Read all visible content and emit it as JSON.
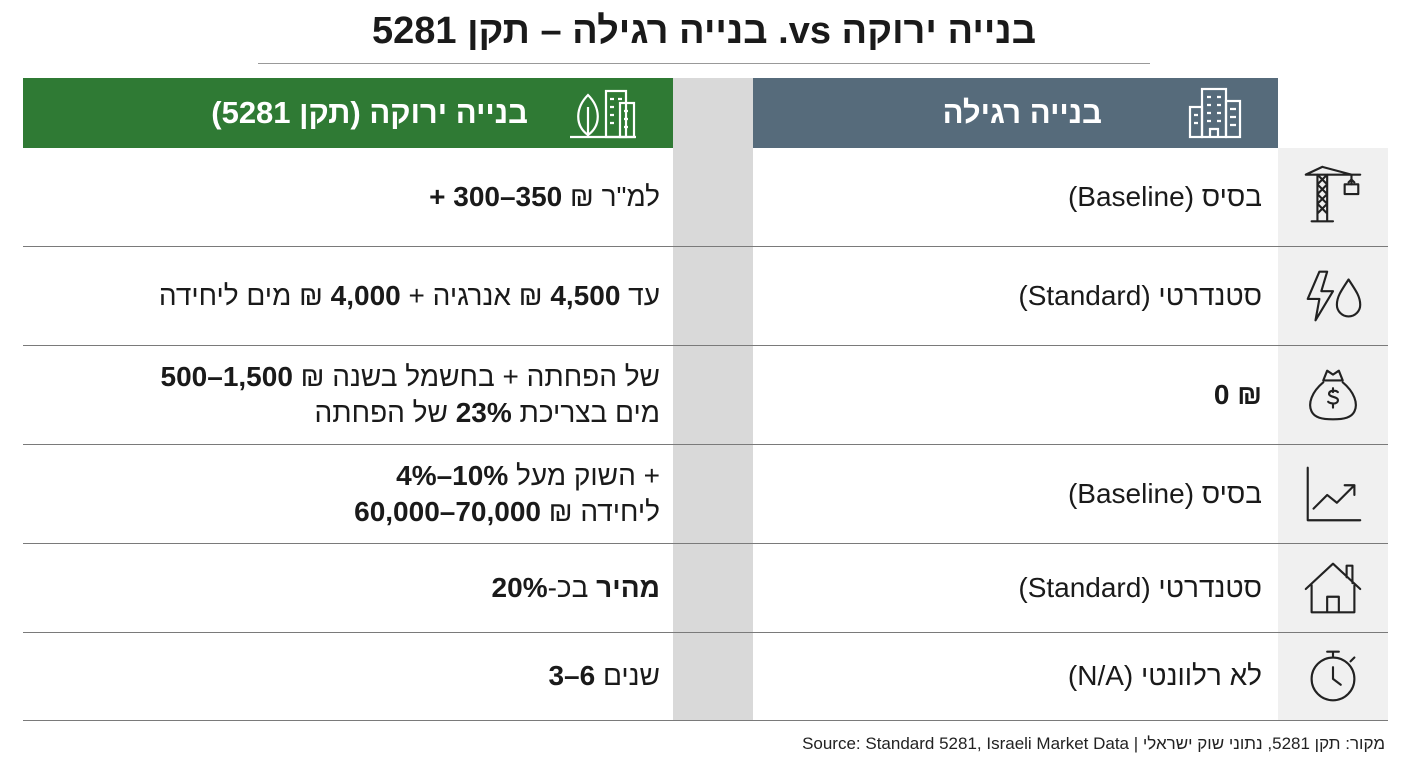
{
  "title": "בנייה ירוקה vs. בנייה רגילה – תקן 5281",
  "table": {
    "headers": {
      "green": "בנייה ירוקה (תקן 5281)",
      "regular": "בנייה רגילה"
    },
    "rows": [
      {
        "regular": [
          [
            {
              "text": "בסיס (Baseline)"
            }
          ]
        ],
        "green": [
          [
            {
              "text": "למ\"ר ₪ "
            },
            {
              "text": "+ 300–350",
              "bold": true
            }
          ]
        ]
      },
      {
        "regular": [
          [
            {
              "text": "סטנדרטי (Standard)"
            }
          ]
        ],
        "green": [
          [
            {
              "text": "עד "
            },
            {
              "text": "4,500",
              "bold": true
            },
            {
              "text": " ₪ אנרגיה + "
            },
            {
              "text": "4,000",
              "bold": true
            },
            {
              "text": " ₪ מים ליחידה"
            }
          ]
        ]
      },
      {
        "regular": [
          [
            {
              "text": "0 ₪",
              "bold": true
            }
          ]
        ],
        "green": [
          [
            {
              "text": "של הפחתה + בחשמל בשנה ₪ "
            },
            {
              "text": "500–1,500",
              "bold": true
            }
          ],
          [
            {
              "text": "מים בצריכת "
            },
            {
              "text": "23%",
              "bold": true
            },
            {
              "text": " של הפחתה"
            }
          ]
        ]
      },
      {
        "regular": [
          [
            {
              "text": "בסיס (Baseline)"
            }
          ]
        ],
        "green": [
          [
            {
              "text": "+ השוק מעל "
            },
            {
              "text": "4%–10%",
              "bold": true
            }
          ],
          [
            {
              "text": "ליחידה ₪ "
            },
            {
              "text": "60,000–70,000",
              "bold": true
            }
          ]
        ]
      },
      {
        "regular": [
          [
            {
              "text": "סטנדרטי (Standard)"
            }
          ]
        ],
        "green": [
          [
            {
              "text": "מהיר ",
              "bold": true
            },
            {
              "text": "בכ-"
            },
            {
              "text": "20%",
              "bold": true
            }
          ]
        ]
      },
      {
        "regular": [
          [
            {
              "text": "לא רלוונטי (N/A)"
            }
          ]
        ],
        "green": [
          [
            {
              "text": "שנים "
            },
            {
              "text": "3–6",
              "bold": true
            }
          ]
        ]
      }
    ]
  },
  "source": "מקור: תקן 5281, נתוני שוק ישראלי | Source: Standard 5281, Israeli Market Data"
}
